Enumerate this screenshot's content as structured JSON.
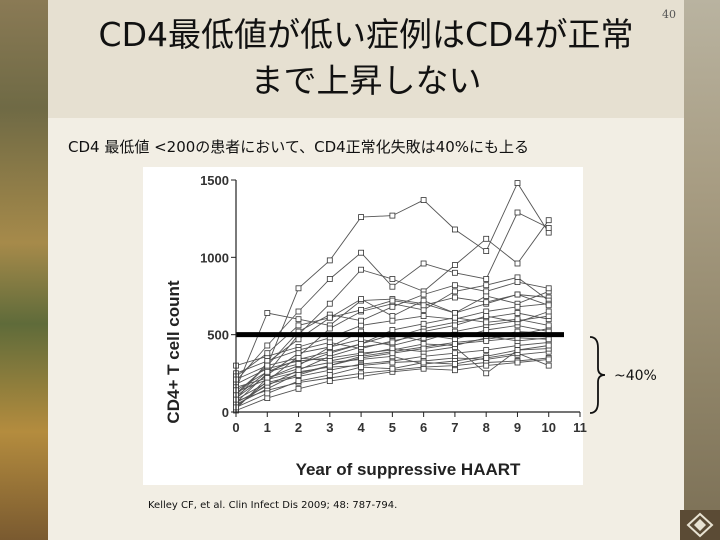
{
  "slide": {
    "page_number": "40",
    "title_line1": "CD4最低値が低い症例はCD4が正常",
    "title_line2": "まで上昇しない",
    "subtitle": "CD4 最低値 <200の患者において、CD4正常化失敗は40%にも上る",
    "annotation": "~40%",
    "citation": "Kelley CF, et al. Clin Infect Dis 2009; 48: 787-794."
  },
  "chart_data": {
    "type": "line",
    "xlabel": "Year of suppressive HAART",
    "ylabel": "CD4+ T cell count",
    "x_ticks": [
      "0",
      "1",
      "2",
      "3",
      "4",
      "5",
      "6",
      "7",
      "8",
      "9",
      "10",
      "11"
    ],
    "y_ticks": [
      "0",
      "500",
      "1000",
      "1500"
    ],
    "xlim": [
      0,
      11
    ],
    "ylim": [
      0,
      1500
    ],
    "threshold": 500,
    "series": [
      {
        "values": [
          [
            0,
            150
          ],
          [
            1,
            640
          ],
          [
            2,
            600
          ],
          [
            3,
            560
          ],
          [
            4,
            720
          ],
          [
            5,
            730
          ],
          [
            6,
            700
          ],
          [
            7,
            640
          ],
          [
            8,
            700
          ],
          [
            9,
            760
          ],
          [
            10,
            740
          ]
        ]
      },
      {
        "values": [
          [
            0,
            120
          ],
          [
            1,
            300
          ],
          [
            2,
            800
          ],
          [
            3,
            980
          ],
          [
            4,
            1260
          ],
          [
            5,
            1270
          ],
          [
            6,
            1370
          ],
          [
            7,
            1180
          ],
          [
            8,
            1040
          ],
          [
            9,
            1480
          ],
          [
            10,
            1160
          ]
        ]
      },
      {
        "values": [
          [
            0,
            60
          ],
          [
            1,
            250
          ],
          [
            2,
            500
          ],
          [
            3,
            700
          ],
          [
            4,
            920
          ],
          [
            5,
            860
          ],
          [
            6,
            780
          ],
          [
            7,
            950
          ],
          [
            8,
            1120
          ],
          [
            9,
            960
          ],
          [
            10,
            1240
          ]
        ]
      },
      {
        "values": [
          [
            0,
            200
          ],
          [
            1,
            430
          ],
          [
            2,
            650
          ],
          [
            3,
            860
          ],
          [
            4,
            1030
          ],
          [
            5,
            810
          ],
          [
            6,
            960
          ],
          [
            7,
            900
          ],
          [
            8,
            860
          ],
          [
            9,
            1290
          ],
          [
            10,
            1190
          ]
        ]
      },
      {
        "values": [
          [
            0,
            30
          ],
          [
            1,
            200
          ],
          [
            2,
            360
          ],
          [
            3,
            540
          ],
          [
            4,
            650
          ],
          [
            5,
            700
          ],
          [
            6,
            660
          ],
          [
            7,
            780
          ],
          [
            8,
            820
          ],
          [
            9,
            870
          ],
          [
            10,
            720
          ]
        ]
      },
      {
        "values": [
          [
            0,
            80
          ],
          [
            1,
            320
          ],
          [
            2,
            470
          ],
          [
            3,
            610
          ],
          [
            4,
            730
          ],
          [
            5,
            620
          ],
          [
            6,
            720
          ],
          [
            7,
            640
          ],
          [
            8,
            750
          ],
          [
            9,
            700
          ],
          [
            10,
            780
          ]
        ]
      },
      {
        "values": [
          [
            0,
            300
          ],
          [
            1,
            360
          ],
          [
            2,
            420
          ],
          [
            3,
            480
          ],
          [
            4,
            560
          ],
          [
            5,
            590
          ],
          [
            6,
            620
          ],
          [
            7,
            600
          ],
          [
            8,
            650
          ],
          [
            9,
            680
          ],
          [
            10,
            700
          ]
        ]
      },
      {
        "values": [
          [
            0,
            20
          ],
          [
            1,
            220
          ],
          [
            2,
            300
          ],
          [
            3,
            420
          ],
          [
            4,
            520
          ],
          [
            5,
            480
          ],
          [
            6,
            540
          ],
          [
            7,
            580
          ],
          [
            8,
            610
          ],
          [
            9,
            640
          ],
          [
            10,
            600
          ]
        ]
      },
      {
        "values": [
          [
            0,
            100
          ],
          [
            1,
            260
          ],
          [
            2,
            340
          ],
          [
            3,
            390
          ],
          [
            4,
            440
          ],
          [
            5,
            500
          ],
          [
            6,
            460
          ],
          [
            7,
            520
          ],
          [
            8,
            560
          ],
          [
            9,
            590
          ],
          [
            10,
            620
          ]
        ]
      },
      {
        "values": [
          [
            0,
            50
          ],
          [
            1,
            150
          ],
          [
            2,
            250
          ],
          [
            3,
            300
          ],
          [
            4,
            360
          ],
          [
            5,
            390
          ],
          [
            6,
            420
          ],
          [
            7,
            450
          ],
          [
            8,
            470
          ],
          [
            9,
            500
          ],
          [
            10,
            540
          ]
        ]
      },
      {
        "values": [
          [
            0,
            180
          ],
          [
            1,
            280
          ],
          [
            2,
            330
          ],
          [
            3,
            350
          ],
          [
            4,
            380
          ],
          [
            5,
            400
          ],
          [
            6,
            440
          ],
          [
            7,
            430
          ],
          [
            8,
            480
          ],
          [
            9,
            520
          ],
          [
            10,
            510
          ]
        ]
      },
      {
        "values": [
          [
            0,
            40
          ],
          [
            1,
            180
          ],
          [
            2,
            230
          ],
          [
            3,
            270
          ],
          [
            4,
            310
          ],
          [
            5,
            330
          ],
          [
            6,
            360
          ],
          [
            7,
            380
          ],
          [
            8,
            400
          ],
          [
            9,
            430
          ],
          [
            10,
            450
          ]
        ]
      },
      {
        "values": [
          [
            0,
            130
          ],
          [
            1,
            210
          ],
          [
            2,
            260
          ],
          [
            3,
            290
          ],
          [
            4,
            300
          ],
          [
            5,
            320
          ],
          [
            6,
            330
          ],
          [
            7,
            350
          ],
          [
            8,
            340
          ],
          [
            9,
            370
          ],
          [
            10,
            390
          ]
        ]
      },
      {
        "values": [
          [
            0,
            70
          ],
          [
            1,
            140
          ],
          [
            2,
            190
          ],
          [
            3,
            220
          ],
          [
            4,
            250
          ],
          [
            5,
            270
          ],
          [
            6,
            290
          ],
          [
            7,
            300
          ],
          [
            8,
            320
          ],
          [
            9,
            330
          ],
          [
            10,
            350
          ]
        ]
      },
      {
        "values": [
          [
            0,
            10
          ],
          [
            1,
            90
          ],
          [
            2,
            150
          ],
          [
            3,
            200
          ],
          [
            4,
            230
          ],
          [
            5,
            260
          ],
          [
            6,
            280
          ],
          [
            7,
            270
          ],
          [
            8,
            300
          ],
          [
            9,
            320
          ],
          [
            10,
            340
          ]
        ]
      },
      {
        "values": [
          [
            0,
            250
          ],
          [
            1,
            330
          ],
          [
            2,
            400
          ],
          [
            3,
            450
          ],
          [
            4,
            410
          ],
          [
            5,
            460
          ],
          [
            6,
            500
          ],
          [
            7,
            470
          ],
          [
            8,
            530
          ],
          [
            9,
            560
          ],
          [
            10,
            520
          ]
        ]
      },
      {
        "values": [
          [
            0,
            90
          ],
          [
            1,
            240
          ],
          [
            2,
            380
          ],
          [
            3,
            420
          ],
          [
            4,
            470
          ],
          [
            5,
            430
          ],
          [
            6,
            480
          ],
          [
            7,
            500
          ],
          [
            8,
            490
          ],
          [
            9,
            460
          ],
          [
            10,
            480
          ]
        ]
      },
      {
        "values": [
          [
            0,
            160
          ],
          [
            1,
            220
          ],
          [
            2,
            280
          ],
          [
            3,
            320
          ],
          [
            4,
            340
          ],
          [
            5,
            360
          ],
          [
            6,
            310
          ],
          [
            7,
            330
          ],
          [
            8,
            360
          ],
          [
            9,
            400
          ],
          [
            10,
            410
          ]
        ]
      },
      {
        "values": [
          [
            0,
            110
          ],
          [
            1,
            300
          ],
          [
            2,
            520
          ],
          [
            3,
            630
          ],
          [
            4,
            590
          ],
          [
            5,
            680
          ],
          [
            6,
            760
          ],
          [
            7,
            820
          ],
          [
            8,
            780
          ],
          [
            9,
            840
          ],
          [
            10,
            800
          ]
        ]
      },
      {
        "values": [
          [
            0,
            230
          ],
          [
            1,
            380
          ],
          [
            2,
            560
          ],
          [
            3,
            610
          ],
          [
            4,
            660
          ],
          [
            5,
            720
          ],
          [
            6,
            690
          ],
          [
            7,
            740
          ],
          [
            8,
            710
          ],
          [
            9,
            760
          ],
          [
            10,
            690
          ]
        ]
      },
      {
        "values": [
          [
            0,
            60
          ],
          [
            1,
            170
          ],
          [
            2,
            270
          ],
          [
            3,
            360
          ],
          [
            4,
            420
          ],
          [
            5,
            450
          ],
          [
            6,
            520
          ],
          [
            7,
            560
          ],
          [
            8,
            620
          ],
          [
            9,
            580
          ],
          [
            10,
            650
          ]
        ]
      },
      {
        "values": [
          [
            0,
            140
          ],
          [
            1,
            260
          ],
          [
            2,
            310
          ],
          [
            3,
            380
          ],
          [
            4,
            440
          ],
          [
            5,
            530
          ],
          [
            6,
            570
          ],
          [
            7,
            610
          ],
          [
            8,
            580
          ],
          [
            9,
            600
          ],
          [
            10,
            560
          ]
        ]
      },
      {
        "values": [
          [
            0,
            30
          ],
          [
            1,
            120
          ],
          [
            2,
            200
          ],
          [
            3,
            240
          ],
          [
            4,
            290
          ],
          [
            5,
            280
          ],
          [
            6,
            320
          ],
          [
            7,
            310
          ],
          [
            8,
            350
          ],
          [
            9,
            380
          ],
          [
            10,
            300
          ]
        ]
      },
      {
        "values": [
          [
            0,
            210
          ],
          [
            1,
            300
          ],
          [
            2,
            350
          ],
          [
            3,
            330
          ],
          [
            4,
            370
          ],
          [
            5,
            410
          ],
          [
            6,
            390
          ],
          [
            7,
            420
          ],
          [
            8,
            250
          ],
          [
            9,
            400
          ],
          [
            10,
            430
          ]
        ]
      },
      {
        "values": [
          [
            0,
            80
          ],
          [
            1,
            190
          ],
          [
            2,
            240
          ],
          [
            3,
            300
          ],
          [
            4,
            350
          ],
          [
            5,
            380
          ],
          [
            6,
            410
          ],
          [
            7,
            440
          ],
          [
            8,
            460
          ],
          [
            9,
            480
          ],
          [
            10,
            470
          ]
        ]
      }
    ]
  }
}
